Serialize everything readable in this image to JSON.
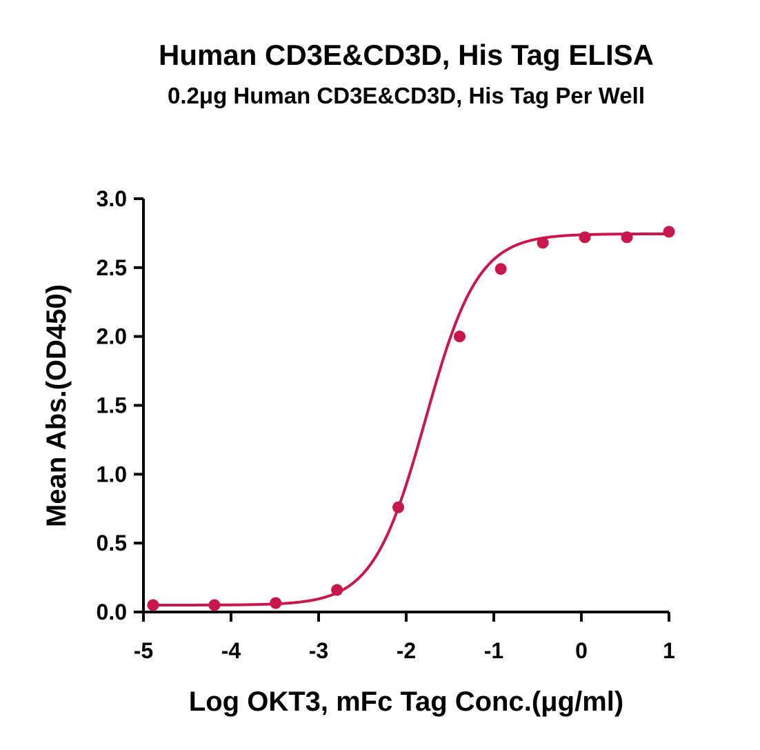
{
  "chart_data": {
    "type": "scatter",
    "title": "Human CD3E&CD3D, His Tag ELISA",
    "subtitle": "0.2μg Human CD3E&CD3D, His Tag Per Well",
    "xlabel": "Log OKT3, mFc Tag Conc.(μg/ml)",
    "ylabel": "Mean Abs.(OD450)",
    "xlim": [
      -5,
      1
    ],
    "ylim": [
      0,
      3.0
    ],
    "x_ticks": [
      "-5",
      "-4",
      "-3",
      "-2",
      "-1",
      "0",
      "1"
    ],
    "y_ticks": [
      "0.0",
      "0.5",
      "1.0",
      "1.5",
      "2.0",
      "2.5",
      "3.0"
    ],
    "grid": false,
    "series": [
      {
        "color": "#c8174a",
        "x": [
          -4.89,
          -4.19,
          -3.49,
          -2.79,
          -2.09,
          -1.39,
          -0.92,
          -0.44,
          0.04,
          0.52,
          1.0
        ],
        "y": [
          0.05,
          0.05,
          0.065,
          0.16,
          0.76,
          2.0,
          2.49,
          2.68,
          2.72,
          2.72,
          2.76
        ],
        "fit": {
          "model": "4PL",
          "bottom": 0.05,
          "top": 2.745,
          "log_ec50": -1.78,
          "hill_slope": 1.45
        }
      }
    ]
  }
}
